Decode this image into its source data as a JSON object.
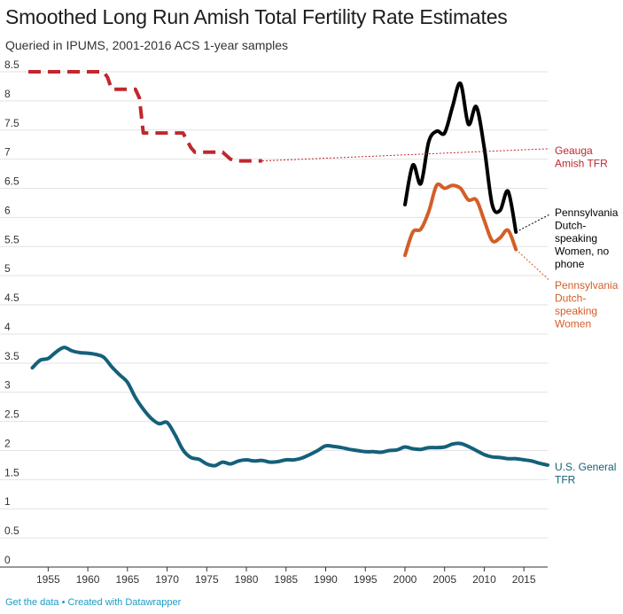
{
  "header": {
    "title": "Smoothed Long Run Amish Total Fertility Rate Estimates",
    "subtitle": "Queried in IPUMS, 2001-2016 ACS 1-year samples"
  },
  "footer": {
    "get_data": "Get the data",
    "separator": "•",
    "created_with": "Created with Datawrapper"
  },
  "chart_data": {
    "type": "line",
    "title": "Smoothed Long Run Amish Total Fertility Rate Estimates",
    "subtitle": "Queried in IPUMS, 2001-2016 ACS 1-year samples",
    "xlim": [
      1952.5,
      2018
    ],
    "ylim": [
      0,
      8.5
    ],
    "x_ticks": [
      1955,
      1960,
      1965,
      1970,
      1975,
      1980,
      1985,
      1990,
      1995,
      2000,
      2005,
      2010,
      2015
    ],
    "y_ticks": [
      0,
      0.5,
      1,
      1.5,
      2,
      2.5,
      3,
      3.5,
      4,
      4.5,
      5,
      5.5,
      6,
      6.5,
      7,
      7.5,
      8,
      8.5
    ],
    "y_tick_labels": [
      "0",
      "0.5",
      "1",
      "1.5",
      "2",
      "2.5",
      "3",
      "3.5",
      "4",
      "4.5",
      "5",
      "5.5",
      "6",
      "6.5",
      "7",
      "7.5",
      "8",
      "8.5"
    ],
    "grid": "horizontal",
    "series": [
      {
        "name": "Geauga Amish TFR",
        "label_lines": [
          "Geauga",
          "Amish TFR"
        ],
        "color": "#c1272d",
        "style": "dashed",
        "x": [
          1952.5,
          1962,
          1962.5,
          1963,
          1966,
          1966.5,
          1967,
          1970,
          1970.5,
          1972,
          1973,
          1973.5,
          1977,
          1978,
          1978.5,
          1982
        ],
        "y": [
          8.5,
          8.5,
          8.4,
          8.2,
          8.2,
          8.05,
          7.45,
          7.45,
          7.45,
          7.45,
          7.2,
          7.12,
          7.12,
          7.0,
          6.97,
          6.97
        ]
      },
      {
        "name": "Pennsylvania Dutch-speaking Women, no phone",
        "label_lines": [
          "Pennsylvania",
          "Dutch-",
          "speaking",
          "Women, no",
          "phone"
        ],
        "color": "#000000",
        "style": "solid",
        "x": [
          2000,
          2001,
          2002,
          2003,
          2004,
          2005,
          2006,
          2007,
          2008,
          2009,
          2010,
          2011,
          2012,
          2013,
          2014
        ],
        "y": [
          6.22,
          6.9,
          6.58,
          7.3,
          7.48,
          7.45,
          7.9,
          8.3,
          7.6,
          7.9,
          7.2,
          6.22,
          6.12,
          6.45,
          5.75
        ]
      },
      {
        "name": "Pennsylvania Dutch-speaking Women",
        "label_lines": [
          "Pennsylvania",
          "Dutch-",
          "speaking",
          "Women"
        ],
        "color": "#d35e28",
        "style": "solid",
        "x": [
          2000,
          2001,
          2002,
          2003,
          2004,
          2005,
          2006,
          2007,
          2008,
          2009,
          2010,
          2011,
          2012,
          2013,
          2014
        ],
        "y": [
          5.35,
          5.75,
          5.8,
          6.1,
          6.55,
          6.5,
          6.55,
          6.5,
          6.3,
          6.3,
          5.95,
          5.6,
          5.65,
          5.78,
          5.45
        ]
      },
      {
        "name": "U.S. General TFR",
        "label_lines": [
          "U.S. General",
          "TFR"
        ],
        "color": "#15607a",
        "style": "solid",
        "x": [
          1953,
          1954,
          1955,
          1956,
          1957,
          1958,
          1959,
          1960,
          1961,
          1962,
          1963,
          1964,
          1965,
          1966,
          1967,
          1968,
          1969,
          1970,
          1971,
          1972,
          1973,
          1974,
          1975,
          1976,
          1977,
          1978,
          1979,
          1980,
          1981,
          1982,
          1983,
          1984,
          1985,
          1986,
          1987,
          1988,
          1989,
          1990,
          1991,
          1992,
          1993,
          1994,
          1995,
          1996,
          1997,
          1998,
          1999,
          2000,
          2001,
          2002,
          2003,
          2004,
          2005,
          2006,
          2007,
          2008,
          2009,
          2010,
          2011,
          2012,
          2013,
          2014,
          2015,
          2016,
          2017,
          2018
        ],
        "y": [
          3.42,
          3.55,
          3.58,
          3.69,
          3.77,
          3.71,
          3.68,
          3.67,
          3.65,
          3.6,
          3.44,
          3.3,
          3.17,
          2.91,
          2.71,
          2.55,
          2.46,
          2.48,
          2.27,
          2.01,
          1.88,
          1.85,
          1.77,
          1.74,
          1.8,
          1.77,
          1.82,
          1.84,
          1.82,
          1.83,
          1.8,
          1.81,
          1.84,
          1.84,
          1.87,
          1.93,
          2.0,
          2.08,
          2.07,
          2.05,
          2.02,
          2.0,
          1.98,
          1.98,
          1.97,
          2.0,
          2.01,
          2.06,
          2.03,
          2.02,
          2.05,
          2.05,
          2.06,
          2.11,
          2.12,
          2.07,
          2.0,
          1.93,
          1.89,
          1.88,
          1.86,
          1.86,
          1.84,
          1.82,
          1.78,
          1.75
        ]
      }
    ]
  }
}
